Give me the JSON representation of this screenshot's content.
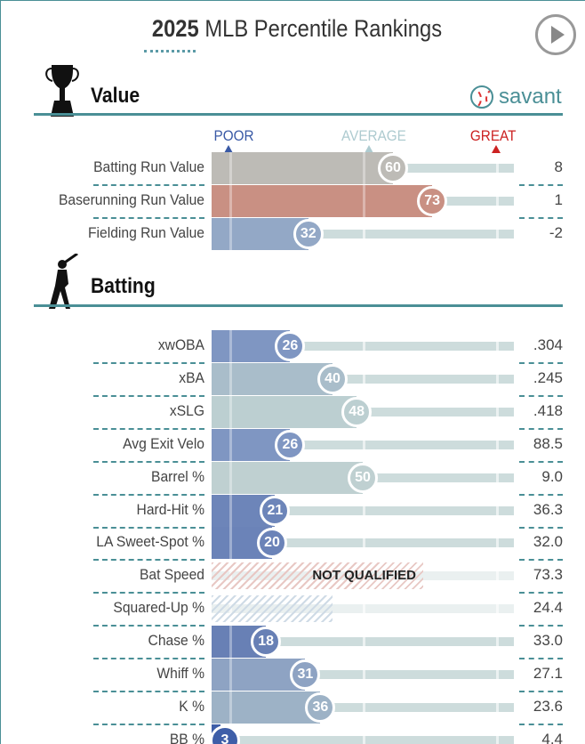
{
  "header": {
    "year": "2025",
    "title": "MLB Percentile Rankings"
  },
  "scale": {
    "poor": "POOR",
    "average": "AVERAGE",
    "great": "GREAT",
    "poor_color": "#3a5aa6",
    "average_color": "#aecbd0",
    "great_color": "#cc2222"
  },
  "savant": {
    "label": "savant"
  },
  "sections": [
    {
      "title": "Value",
      "icon": "trophy-icon",
      "rows": [
        {
          "label": "Batting Run Value",
          "percentile": 60,
          "value": "8",
          "color": "#bdbbb6"
        },
        {
          "label": "Baserunning Run Value",
          "percentile": 73,
          "value": "1",
          "color": "#c99083"
        },
        {
          "label": "Fielding Run Value",
          "percentile": 32,
          "value": "-2",
          "color": "#93a8c6"
        }
      ]
    },
    {
      "title": "Batting",
      "icon": "batter-icon",
      "rows": [
        {
          "label": "xwOBA",
          "percentile": 26,
          "value": ".304",
          "color": "#7f96c2"
        },
        {
          "label": "xBA",
          "percentile": 40,
          "value": ".245",
          "color": "#a9bdca"
        },
        {
          "label": "xSLG",
          "percentile": 48,
          "value": ".418",
          "color": "#bccfd1"
        },
        {
          "label": "Avg Exit Velo",
          "percentile": 26,
          "value": "88.5",
          "color": "#7f96c2"
        },
        {
          "label": "Barrel %",
          "percentile": 50,
          "value": "9.0",
          "color": "#bfd0d1"
        },
        {
          "label": "Hard-Hit %",
          "percentile": 21,
          "value": "36.3",
          "color": "#6d85b9"
        },
        {
          "label": "LA Sweet-Spot %",
          "percentile": 20,
          "value": "32.0",
          "color": "#6b83b8"
        },
        {
          "label": "Bat Speed",
          "percentile": null,
          "status": "NOT QUALIFIED",
          "hatch": "#e8c8c4",
          "hatch_fill": 70,
          "value": "73.3"
        },
        {
          "label": "Squared-Up %",
          "percentile": null,
          "hatch": "#cfdbe6",
          "hatch_fill": 40,
          "value": "24.4"
        },
        {
          "label": "Chase %",
          "percentile": 18,
          "value": "33.0",
          "color": "#6880b5"
        },
        {
          "label": "Whiff %",
          "percentile": 31,
          "value": "27.1",
          "color": "#8ea3c3"
        },
        {
          "label": "K %",
          "percentile": 36,
          "value": "23.6",
          "color": "#9db2c6"
        },
        {
          "label": "BB %",
          "percentile": 3,
          "value": "4.4",
          "color": "#3e5ea8"
        }
      ]
    }
  ]
}
